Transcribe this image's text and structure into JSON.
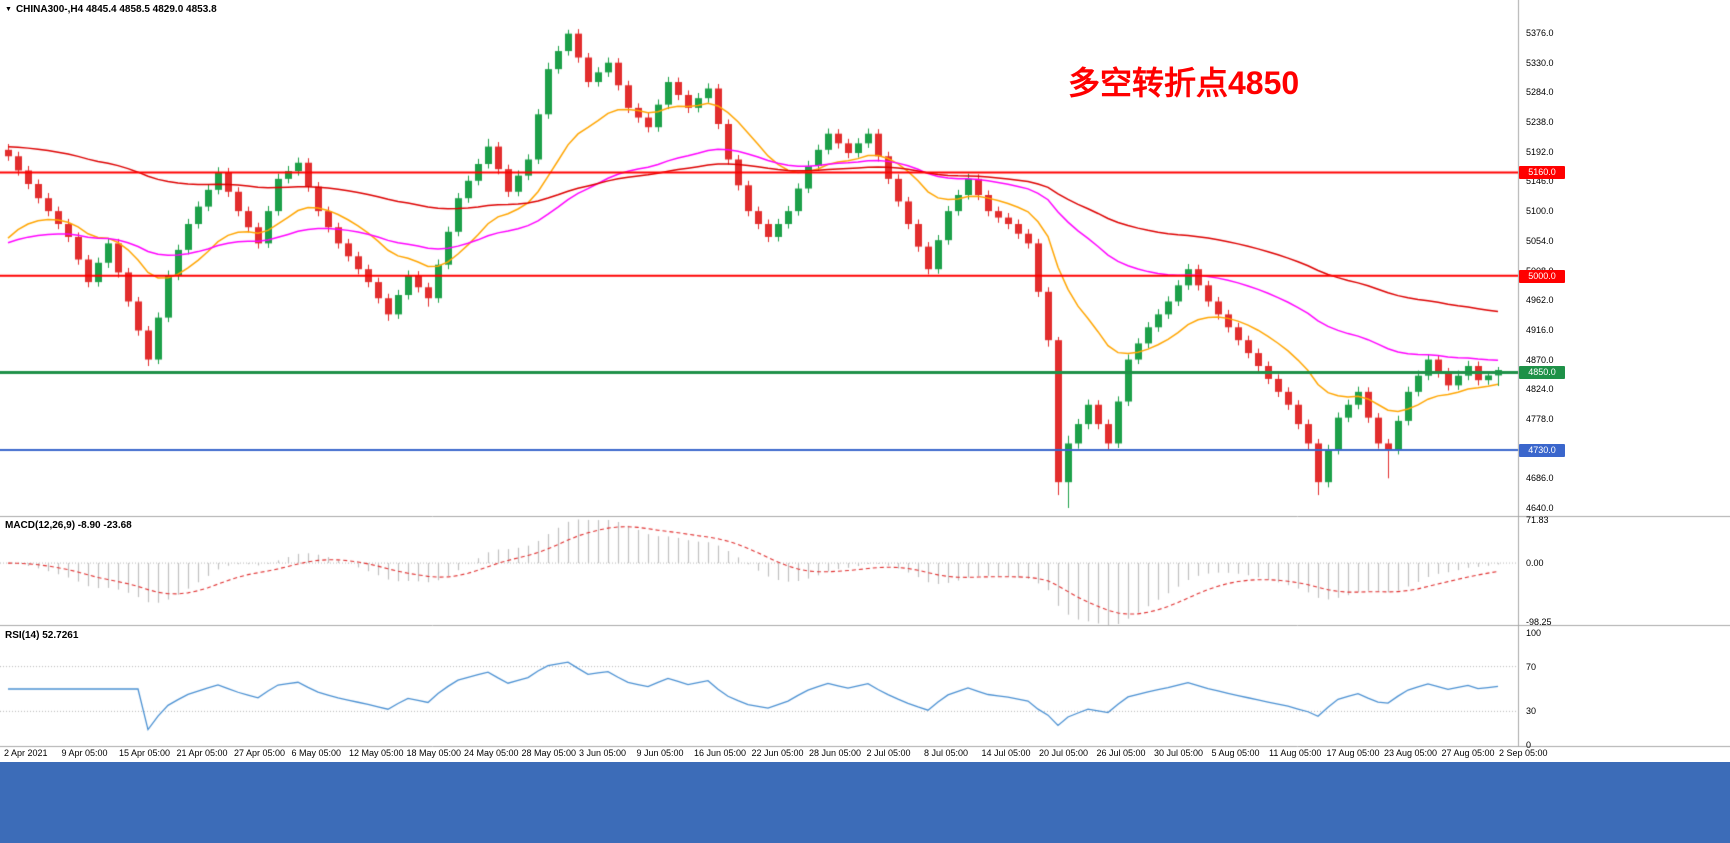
{
  "window": {
    "symbol_header": "CHINA300-,H4 4845.4 4858.5 4829.0 4853.8"
  },
  "bottom_bar": {
    "color": "#3C6CB8"
  },
  "chart_data": {
    "type": "candlestick",
    "symbol": "CHINA300-",
    "timeframe": "H4",
    "ohlc": {
      "open": 4845.4,
      "high": 4858.5,
      "low": 4829.0,
      "close": 4853.8
    },
    "annotation": {
      "text": "多空转折点4850",
      "color": "#FF0000"
    },
    "price_axis": {
      "min": 4640,
      "max": 5376,
      "labels": [
        "5376.0",
        "5330.0",
        "5284.0",
        "5238.0",
        "5192.0",
        "5146.0",
        "5100.0",
        "5054.0",
        "5008.0",
        "4962.0",
        "4916.0",
        "4870.0",
        "4824.0",
        "4778.0",
        "4732.0",
        "4686.0",
        "4640.0"
      ]
    },
    "time_axis_labels": [
      "2 Apr 2021",
      "9 Apr 05:00",
      "15 Apr 05:00",
      "21 Apr 05:00",
      "27 Apr 05:00",
      "6 May 05:00",
      "12 May 05:00",
      "18 May 05:00",
      "24 May 05:00",
      "28 May 05:00",
      "3 Jun 05:00",
      "9 Jun 05:00",
      "16 Jun 05:00",
      "22 Jun 05:00",
      "28 Jun 05:00",
      "2 Jul 05:00",
      "8 Jul 05:00",
      "14 Jul 05:00",
      "20 Jul 05:00",
      "26 Jul 05:00",
      "30 Jul 05:00",
      "5 Aug 05:00",
      "11 Aug 05:00",
      "17 Aug 05:00",
      "23 Aug 05:00",
      "27 Aug 05:00",
      "2 Sep 05:00"
    ],
    "candles": [
      [
        5195,
        5204,
        5178,
        5185
      ],
      [
        5185,
        5192,
        5155,
        5163
      ],
      [
        5163,
        5170,
        5134,
        5142
      ],
      [
        5142,
        5149,
        5112,
        5120
      ],
      [
        5120,
        5128,
        5092,
        5100
      ],
      [
        5100,
        5107,
        5072,
        5080
      ],
      [
        5080,
        5088,
        5052,
        5060
      ],
      [
        5060,
        5067,
        5017,
        5025
      ],
      [
        5025,
        5032,
        4982,
        4990
      ],
      [
        4990,
        5028,
        4983,
        5020
      ],
      [
        5020,
        5058,
        5012,
        5050
      ],
      [
        5050,
        5057,
        4997,
        5005
      ],
      [
        5005,
        5012,
        4952,
        4960
      ],
      [
        4960,
        4967,
        4907,
        4915
      ],
      [
        4915,
        4922,
        4860,
        4870
      ],
      [
        4870,
        4943,
        4863,
        4935
      ],
      [
        4935,
        5008,
        4928,
        5000
      ],
      [
        5000,
        5048,
        4993,
        5040
      ],
      [
        5040,
        5088,
        5033,
        5080
      ],
      [
        5080,
        5115,
        5073,
        5107
      ],
      [
        5107,
        5141,
        5100,
        5133
      ],
      [
        5133,
        5168,
        5126,
        5160
      ],
      [
        5160,
        5167,
        5122,
        5130
      ],
      [
        5130,
        5137,
        5092,
        5100
      ],
      [
        5100,
        5107,
        5067,
        5075
      ],
      [
        5075,
        5082,
        5042,
        5050
      ],
      [
        5050,
        5108,
        5043,
        5100
      ],
      [
        5100,
        5158,
        5093,
        5150
      ],
      [
        5150,
        5170,
        5143,
        5162
      ],
      [
        5162,
        5183,
        5155,
        5175
      ],
      [
        5175,
        5182,
        5130,
        5138
      ],
      [
        5138,
        5145,
        5092,
        5100
      ],
      [
        5100,
        5107,
        5067,
        5075
      ],
      [
        5075,
        5082,
        5042,
        5050
      ],
      [
        5050,
        5057,
        5022,
        5030
      ],
      [
        5030,
        5037,
        5002,
        5010
      ],
      [
        5010,
        5017,
        4982,
        4990
      ],
      [
        4990,
        4997,
        4957,
        4965
      ],
      [
        4965,
        4972,
        4930,
        4940
      ],
      [
        4940,
        4978,
        4933,
        4970
      ],
      [
        4970,
        5008,
        4963,
        5000
      ],
      [
        5000,
        5007,
        4974,
        4982
      ],
      [
        4982,
        4989,
        4952,
        4965
      ],
      [
        4965,
        5025,
        4958,
        5017
      ],
      [
        5017,
        5076,
        5010,
        5068
      ],
      [
        5068,
        5128,
        5061,
        5120
      ],
      [
        5120,
        5155,
        5113,
        5147
      ],
      [
        5147,
        5181,
        5140,
        5173
      ],
      [
        5173,
        5212,
        5166,
        5200
      ],
      [
        5200,
        5207,
        5157,
        5165
      ],
      [
        5165,
        5172,
        5122,
        5130
      ],
      [
        5130,
        5163,
        5123,
        5155
      ],
      [
        5155,
        5188,
        5148,
        5180
      ],
      [
        5180,
        5258,
        5173,
        5250
      ],
      [
        5250,
        5330,
        5243,
        5320
      ],
      [
        5320,
        5356,
        5313,
        5348
      ],
      [
        5348,
        5381,
        5341,
        5375
      ],
      [
        5375,
        5382,
        5330,
        5338
      ],
      [
        5338,
        5345,
        5292,
        5300
      ],
      [
        5300,
        5323,
        5293,
        5315
      ],
      [
        5315,
        5338,
        5308,
        5330
      ],
      [
        5330,
        5337,
        5287,
        5295
      ],
      [
        5295,
        5302,
        5252,
        5260
      ],
      [
        5260,
        5267,
        5237,
        5245
      ],
      [
        5245,
        5252,
        5222,
        5230
      ],
      [
        5230,
        5273,
        5223,
        5265
      ],
      [
        5265,
        5308,
        5258,
        5300
      ],
      [
        5300,
        5307,
        5272,
        5280
      ],
      [
        5280,
        5287,
        5252,
        5260
      ],
      [
        5260,
        5283,
        5253,
        5275
      ],
      [
        5275,
        5298,
        5268,
        5290
      ],
      [
        5290,
        5297,
        5227,
        5235
      ],
      [
        5235,
        5242,
        5172,
        5180
      ],
      [
        5180,
        5187,
        5132,
        5140
      ],
      [
        5140,
        5147,
        5092,
        5100
      ],
      [
        5100,
        5107,
        5072,
        5080
      ],
      [
        5080,
        5087,
        5052,
        5060
      ],
      [
        5060,
        5088,
        5053,
        5080
      ],
      [
        5080,
        5108,
        5073,
        5100
      ],
      [
        5100,
        5143,
        5093,
        5135
      ],
      [
        5135,
        5178,
        5128,
        5170
      ],
      [
        5170,
        5203,
        5163,
        5195
      ],
      [
        5195,
        5228,
        5188,
        5220
      ],
      [
        5220,
        5227,
        5197,
        5205
      ],
      [
        5205,
        5212,
        5182,
        5190
      ],
      [
        5190,
        5213,
        5183,
        5205
      ],
      [
        5205,
        5228,
        5198,
        5220
      ],
      [
        5220,
        5227,
        5177,
        5185
      ],
      [
        5185,
        5192,
        5142,
        5150
      ],
      [
        5150,
        5157,
        5107,
        5115
      ],
      [
        5115,
        5122,
        5072,
        5080
      ],
      [
        5080,
        5087,
        5037,
        5045
      ],
      [
        5045,
        5052,
        5002,
        5010
      ],
      [
        5010,
        5063,
        5003,
        5055
      ],
      [
        5055,
        5108,
        5048,
        5100
      ],
      [
        5100,
        5133,
        5093,
        5125
      ],
      [
        5125,
        5158,
        5118,
        5150
      ],
      [
        5150,
        5157,
        5117,
        5125
      ],
      [
        5125,
        5132,
        5092,
        5100
      ],
      [
        5100,
        5107,
        5082,
        5090
      ],
      [
        5090,
        5097,
        5072,
        5080
      ],
      [
        5080,
        5087,
        5057,
        5065
      ],
      [
        5065,
        5072,
        5042,
        5050
      ],
      [
        5050,
        5057,
        4967,
        4975
      ],
      [
        4975,
        4982,
        4890,
        4900
      ],
      [
        4900,
        4905,
        4660,
        4680
      ],
      [
        4680,
        4752,
        4640,
        4740
      ],
      [
        4740,
        4778,
        4732,
        4770
      ],
      [
        4770,
        4808,
        4762,
        4800
      ],
      [
        4800,
        4807,
        4762,
        4770
      ],
      [
        4770,
        4777,
        4730,
        4740
      ],
      [
        4740,
        4813,
        4733,
        4805
      ],
      [
        4805,
        4878,
        4798,
        4870
      ],
      [
        4870,
        4903,
        4863,
        4895
      ],
      [
        4895,
        4928,
        4888,
        4920
      ],
      [
        4920,
        4948,
        4913,
        4940
      ],
      [
        4940,
        4968,
        4933,
        4960
      ],
      [
        4960,
        4993,
        4953,
        4985
      ],
      [
        4985,
        5018,
        4978,
        5010
      ],
      [
        5010,
        5017,
        4977,
        4985
      ],
      [
        4985,
        4992,
        4952,
        4960
      ],
      [
        4960,
        4967,
        4932,
        4940
      ],
      [
        4940,
        4947,
        4912,
        4920
      ],
      [
        4920,
        4927,
        4892,
        4900
      ],
      [
        4900,
        4907,
        4872,
        4880
      ],
      [
        4880,
        4887,
        4852,
        4860
      ],
      [
        4860,
        4867,
        4832,
        4840
      ],
      [
        4840,
        4847,
        4812,
        4820
      ],
      [
        4820,
        4827,
        4792,
        4800
      ],
      [
        4800,
        4807,
        4762,
        4770
      ],
      [
        4770,
        4777,
        4730,
        4740
      ],
      [
        4740,
        4747,
        4660,
        4680
      ],
      [
        4680,
        4738,
        4672,
        4730
      ],
      [
        4730,
        4788,
        4723,
        4780
      ],
      [
        4780,
        4808,
        4773,
        4800
      ],
      [
        4800,
        4828,
        4793,
        4820
      ],
      [
        4820,
        4827,
        4772,
        4780
      ],
      [
        4780,
        4787,
        4732,
        4740
      ],
      [
        4740,
        4747,
        4686,
        4730
      ],
      [
        4730,
        4783,
        4723,
        4775
      ],
      [
        4775,
        4828,
        4768,
        4820
      ],
      [
        4820,
        4853,
        4813,
        4845
      ],
      [
        4845,
        4878,
        4838,
        4870
      ],
      [
        4870,
        4877,
        4842,
        4850
      ],
      [
        4850,
        4857,
        4822,
        4830
      ],
      [
        4830,
        4853,
        4823,
        4845
      ],
      [
        4845,
        4868,
        4838,
        4860
      ],
      [
        4860,
        4867,
        4830,
        4838
      ],
      [
        4838,
        4852,
        4831,
        4845.4
      ],
      [
        4845.4,
        4858.5,
        4829,
        4853.8
      ]
    ],
    "moving_averages": [
      {
        "name": "ma-fast",
        "period": 15,
        "seed": 5040,
        "color": "#FFA500"
      },
      {
        "name": "ma-medium",
        "period": 45,
        "seed": 5045,
        "color": "#FF00FF"
      },
      {
        "name": "ma-slow",
        "period": 90,
        "seed": 5200,
        "color": "#DD0000"
      }
    ],
    "horizontal_lines": [
      {
        "price": 5160.0,
        "label": "5160.0",
        "color": "#FF0000",
        "width": 2
      },
      {
        "price": 5000.0,
        "label": "5000.0",
        "color": "#FF0000",
        "width": 2
      },
      {
        "price": 4850.0,
        "label": "4850.0",
        "color": "#1E9148",
        "width": 3
      },
      {
        "price": 4730.0,
        "label": "4730.0",
        "color": "#3A66CC",
        "width": 2
      }
    ],
    "indicators": {
      "macd": {
        "label": "MACD(12,26,9) -8.90 -23.68",
        "fast": 12,
        "slow": 26,
        "signal": 9,
        "macd_value": -8.9,
        "signal_value": -23.68,
        "axis_labels": [
          "71.83",
          "0.00",
          "-98.25"
        ],
        "range": [
          -98.25,
          71.83
        ],
        "histogram_color": "#C0C0C0",
        "signal_color": "#E03030"
      },
      "rsi": {
        "label": "RSI(14) 52.7261",
        "period": 14,
        "value": 52.7261,
        "axis_labels": [
          "100",
          "70",
          "30",
          "0"
        ],
        "levels": [
          70,
          30
        ],
        "range": [
          0,
          100
        ],
        "line_color": "#4A90D2"
      }
    },
    "colors": {
      "bull": "#1CA049",
      "bear": "#E22D2D",
      "separator": "#A8A8A8",
      "grid_dotted": "#B5B5B5",
      "axis_text": "#000000",
      "background": "#FFFFFF"
    }
  }
}
